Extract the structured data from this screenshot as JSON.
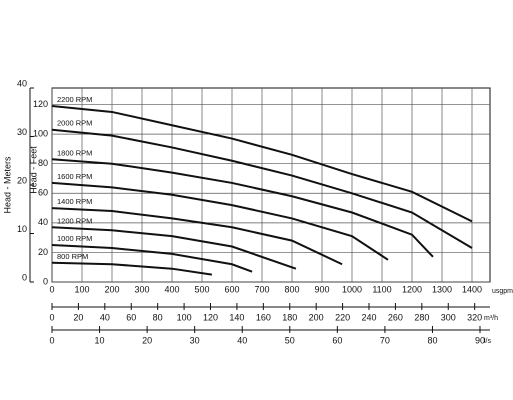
{
  "chart_data": {
    "type": "line",
    "y_label": "Head - Feet",
    "y2_label": "Head - Meters",
    "x_unit": "usgpm",
    "xlim": [
      0,
      1460
    ],
    "xticks": [
      0,
      100,
      200,
      300,
      400,
      500,
      600,
      700,
      800,
      900,
      1000,
      1100,
      1200,
      1300,
      1400
    ],
    "ylim": [
      0,
      131.2
    ],
    "yticks": [
      0,
      20,
      40,
      60,
      80,
      100,
      120
    ],
    "y2lim": [
      0,
      40
    ],
    "y2ticks": [
      0,
      10,
      20,
      30,
      40
    ],
    "grid": true,
    "color": "#111111",
    "flow_axes": [
      {
        "unit": "m³/h",
        "lim": [
          0,
          331.6
        ],
        "ticks": [
          0,
          20,
          40,
          60,
          80,
          100,
          120,
          140,
          160,
          180,
          200,
          220,
          240,
          260,
          280,
          300,
          320
        ]
      },
      {
        "unit": "l/s",
        "lim": [
          0,
          92.1
        ],
        "ticks": [
          0,
          10,
          20,
          30,
          40,
          50,
          60,
          70,
          80,
          90
        ]
      }
    ],
    "series": [
      {
        "name": "2200 RPM",
        "x": [
          0,
          200,
          400,
          600,
          800,
          1000,
          1200,
          1400
        ],
        "values": [
          119,
          115,
          106,
          97,
          86,
          73,
          61,
          41
        ]
      },
      {
        "name": "2000 RPM",
        "x": [
          0,
          200,
          400,
          600,
          800,
          1000,
          1200,
          1400
        ],
        "values": [
          103,
          99,
          91,
          82,
          72,
          60,
          47,
          23
        ]
      },
      {
        "name": "1800 RPM",
        "x": [
          0,
          200,
          400,
          600,
          800,
          1000,
          1200,
          1270
        ],
        "values": [
          83,
          80,
          74,
          67,
          58,
          47,
          32,
          17
        ]
      },
      {
        "name": "1600 RPM",
        "x": [
          0,
          200,
          400,
          600,
          800,
          1000,
          1120
        ],
        "values": [
          67,
          64,
          59,
          52,
          43,
          31,
          15
        ]
      },
      {
        "name": "1400 RPM",
        "x": [
          0,
          200,
          400,
          600,
          800,
          967
        ],
        "values": [
          50,
          48,
          43,
          37,
          28,
          12
        ]
      },
      {
        "name": "1200 RPM",
        "x": [
          0,
          200,
          400,
          600,
          813
        ],
        "values": [
          37,
          35,
          31,
          24,
          9
        ]
      },
      {
        "name": "1000 RPM",
        "x": [
          0,
          200,
          400,
          600,
          667
        ],
        "values": [
          25,
          23,
          19,
          12,
          7
        ]
      },
      {
        "name": "800 RPM",
        "x": [
          0,
          200,
          400,
          533
        ],
        "values": [
          13,
          12,
          9,
          5
        ]
      }
    ]
  }
}
